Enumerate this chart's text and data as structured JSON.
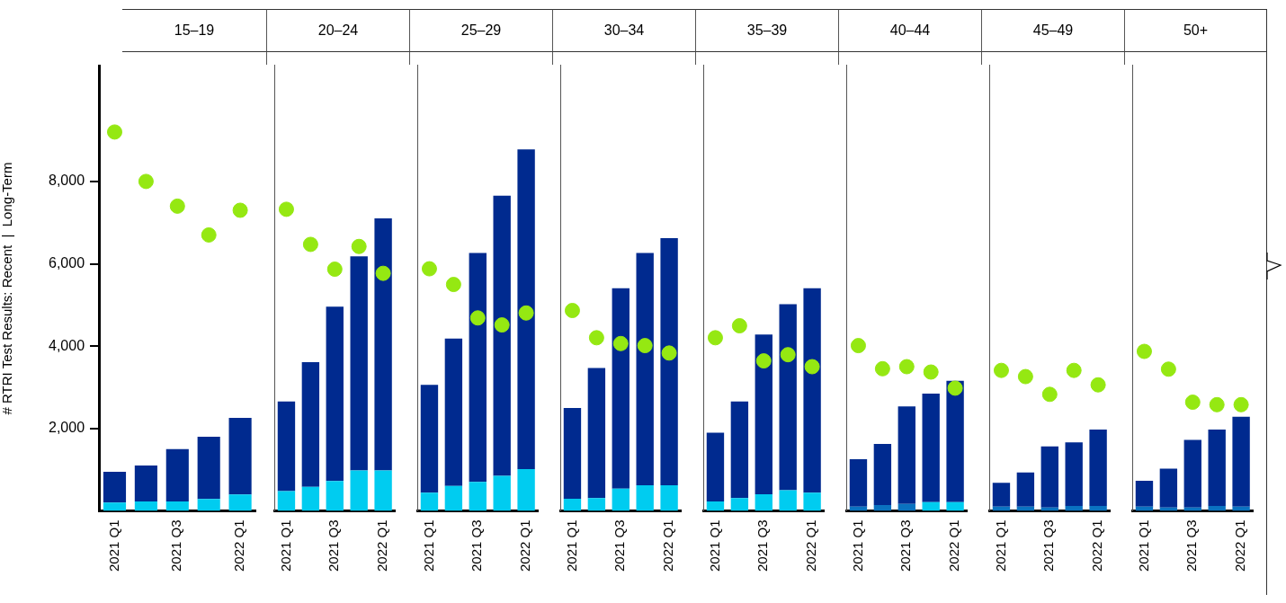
{
  "chart_data": [
    {
      "type": "bar",
      "title": "15–19",
      "ylabel": "# RTRI Test Results: Recent  |  Long-Term",
      "categories": [
        "2021 Q1",
        null,
        "2021 Q3",
        null,
        "2022 Q1"
      ],
      "stacked": true,
      "ylim": [
        0,
        10800
      ],
      "yticks": [
        {
          "value": 2000,
          "label": "2,000"
        },
        {
          "value": 4000,
          "label": "4,000"
        },
        {
          "value": 6000,
          "label": "6,000"
        },
        {
          "value": 8000,
          "label": "8,000"
        }
      ],
      "marker": "circle",
      "series": [
        {
          "colors": [
            "#00ccf0",
            "#00ccf0",
            "#00ccf0",
            "#00ccf0",
            "#00ccf0"
          ],
          "values": [
            200,
            230,
            230,
            290,
            400
          ]
        },
        {
          "color": "#002a8f",
          "values": [
            750,
            870,
            1270,
            1510,
            1860
          ]
        },
        {
          "type": "scatter",
          "color": "#95e812",
          "values": [
            9200,
            8000,
            7400,
            6700,
            7300
          ]
        }
      ]
    },
    {
      "type": "bar",
      "title": "20–24",
      "categories": [
        "2021 Q1",
        null,
        "2021 Q3",
        null,
        "2022 Q1"
      ],
      "stacked": true,
      "ylim": [
        0,
        10800
      ],
      "tick_labels": "x",
      "marker": "circle",
      "series": [
        {
          "colors": [
            "#00ccf0",
            "#00ccf0",
            "#00ccf0",
            "#00ccf0",
            "#00ccf0"
          ],
          "values": [
            480,
            580,
            720,
            980,
            980
          ]
        },
        {
          "color": "#002a8f",
          "values": [
            2170,
            3020,
            4220,
            5180,
            6100
          ]
        },
        {
          "type": "scatter",
          "color": "#95e812",
          "values": [
            7300,
            6450,
            5850,
            6400,
            5750
          ]
        }
      ]
    },
    {
      "type": "bar",
      "title": "25–29",
      "categories": [
        "2021 Q1",
        null,
        "2021 Q3",
        null,
        "2022 Q1"
      ],
      "stacked": true,
      "ylim": [
        0,
        10800
      ],
      "tick_labels": "x",
      "marker": "circle",
      "series": [
        {
          "colors": [
            "#00ccf0",
            "#00ccf0",
            "#00ccf0",
            "#00ccf0",
            "#00ccf0"
          ],
          "values": [
            440,
            600,
            700,
            850,
            1010
          ]
        },
        {
          "color": "#002a8f",
          "values": [
            2610,
            3570,
            5540,
            6780,
            7740
          ]
        },
        {
          "type": "scatter",
          "color": "#95e812",
          "values": [
            5860,
            5480,
            4670,
            4500,
            4790
          ]
        }
      ]
    },
    {
      "type": "bar",
      "title": "30–34",
      "categories": [
        "2021 Q1",
        null,
        "2021 Q3",
        null,
        "2022 Q1"
      ],
      "stacked": true,
      "ylim": [
        0,
        10800
      ],
      "tick_labels": "x",
      "marker": "circle",
      "series": [
        {
          "colors": [
            "#00ccf0",
            "#00ccf0",
            "#00ccf0",
            "#00ccf0",
            "#00ccf0"
          ],
          "values": [
            290,
            310,
            540,
            620,
            620
          ]
        },
        {
          "color": "#002a8f",
          "values": [
            2200,
            3150,
            4850,
            5620,
            5980
          ]
        },
        {
          "type": "scatter",
          "color": "#95e812",
          "values": [
            4850,
            4190,
            4050,
            4000,
            3820
          ]
        }
      ]
    },
    {
      "type": "bar",
      "title": "35–39",
      "categories": [
        "2021 Q1",
        null,
        "2021 Q3",
        null,
        "2022 Q1"
      ],
      "stacked": true,
      "ylim": [
        0,
        10800
      ],
      "tick_labels": "x",
      "marker": "circle",
      "series": [
        {
          "colors": [
            "#00ccf0",
            "#00ccf0",
            "#00ccf0",
            "#00ccf0",
            "#00ccf0"
          ],
          "values": [
            230,
            310,
            400,
            500,
            440
          ]
        },
        {
          "color": "#002a8f",
          "values": [
            1660,
            2340,
            3870,
            4500,
            4950
          ]
        },
        {
          "type": "scatter",
          "color": "#95e812",
          "values": [
            4190,
            4480,
            3630,
            3780,
            3490
          ]
        }
      ]
    },
    {
      "type": "bar",
      "title": "40–44",
      "categories": [
        "2021 Q1",
        null,
        "2021 Q3",
        null,
        "2022 Q1"
      ],
      "stacked": true,
      "ylim": [
        0,
        10800
      ],
      "tick_labels": "x",
      "marker": "circle",
      "series": [
        {
          "colors": [
            "#0a72c0",
            "#0a72c0",
            "#0a72c0",
            "#00ccf0",
            "#00ccf0"
          ],
          "values": [
            100,
            140,
            170,
            210,
            210
          ]
        },
        {
          "color": "#002a8f",
          "values": [
            1150,
            1480,
            2360,
            2630,
            2940
          ]
        },
        {
          "type": "scatter",
          "color": "#95e812",
          "values": [
            4000,
            3440,
            3490,
            3360,
            2970
          ]
        }
      ]
    },
    {
      "type": "bar",
      "title": "45–49",
      "categories": [
        "2021 Q1",
        null,
        "2021 Q3",
        null,
        "2022 Q1"
      ],
      "stacked": true,
      "ylim": [
        0,
        10800
      ],
      "tick_labels": "x",
      "marker": "circle",
      "series": [
        {
          "colors": [
            "#0a72c0",
            "#0a72c0",
            "#0a72c0",
            "#0a72c0",
            "#0a72c0"
          ],
          "values": [
            100,
            100,
            80,
            120,
            120
          ]
        },
        {
          "color": "#002a8f",
          "values": [
            580,
            830,
            1480,
            1540,
            1850
          ]
        },
        {
          "type": "scatter",
          "color": "#95e812",
          "values": [
            3400,
            3250,
            2820,
            3400,
            3050
          ]
        }
      ]
    },
    {
      "type": "bar",
      "title": "50+",
      "categories": [
        "2021 Q1",
        null,
        "2021 Q3",
        null,
        "2022 Q1"
      ],
      "stacked": true,
      "ylim": [
        0,
        10800
      ],
      "tick_labels": "x",
      "marker": "circle",
      "series": [
        {
          "colors": [
            "#0a72c0",
            "#0a72c0",
            "#0a72c0",
            "#0a72c0",
            "#0a72c0"
          ],
          "values": [
            100,
            80,
            80,
            120,
            100
          ]
        },
        {
          "color": "#002a8f",
          "values": [
            630,
            940,
            1640,
            1850,
            2180
          ]
        },
        {
          "type": "scatter",
          "color": "#95e812",
          "values": [
            3860,
            3430,
            2630,
            2570,
            2570
          ]
        }
      ]
    }
  ]
}
